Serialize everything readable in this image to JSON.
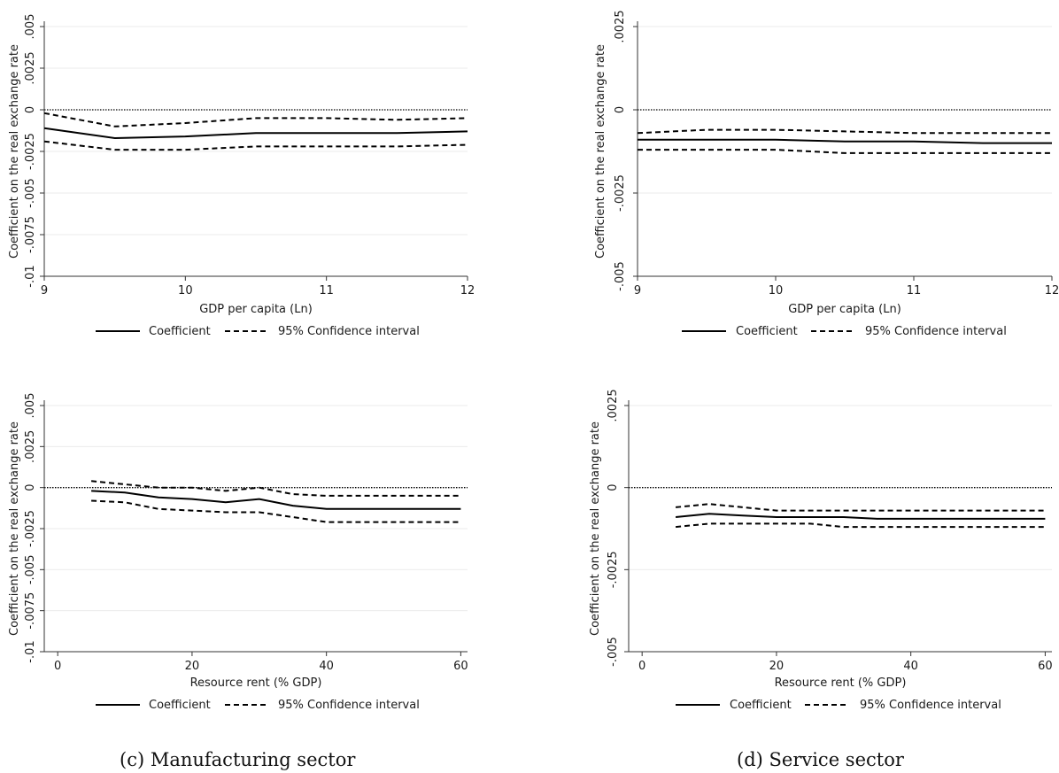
{
  "legend": {
    "coefficient": "Coefficient",
    "ci": "95% Confidence interval"
  },
  "captions": {
    "c": "(c) Manufacturing sector",
    "d": "(d) Service sector"
  },
  "colors": {
    "line": "#000000",
    "grid": "#ebebeb",
    "axis": "#333333"
  },
  "chart_data": [
    {
      "type": "line",
      "xlabel": "GDP per capita (Ln)",
      "ylabel": "Coefficient on the real exchange rate",
      "xlim": [
        9,
        12
      ],
      "ylim": [
        -0.01,
        0.005
      ],
      "xticks": [
        9,
        10,
        11,
        12
      ],
      "xtick_labels": [
        "9",
        "10",
        "11",
        "12"
      ],
      "yticks": [
        -0.01,
        -0.0075,
        -0.005,
        -0.0025,
        0,
        0.0025,
        0.005
      ],
      "ytick_labels": [
        "-.01",
        "-.0075",
        "-.005",
        "-.0025",
        "0",
        ".0025",
        ".005"
      ],
      "zero_line": true,
      "grid": true,
      "legend_position": "bottom",
      "x": [
        9,
        9.5,
        10,
        10.5,
        11,
        11.5,
        12
      ],
      "series": [
        {
          "name": "Coefficient",
          "style": "solid",
          "values": [
            -0.0011,
            -0.0017,
            -0.0016,
            -0.0014,
            -0.0014,
            -0.0014,
            -0.0013
          ]
        },
        {
          "name": "95% Confidence interval",
          "style": "dashed",
          "values": [
            -0.0002,
            -0.001,
            -0.0008,
            -0.0005,
            -0.0005,
            -0.0006,
            -0.0005
          ]
        },
        {
          "name": "95% Confidence interval",
          "style": "dashed",
          "values": [
            -0.0019,
            -0.0024,
            -0.0024,
            -0.0022,
            -0.0022,
            -0.0022,
            -0.0021
          ]
        }
      ]
    },
    {
      "type": "line",
      "xlabel": "GDP per capita (Ln)",
      "ylabel": "Coefficient on the real exchange rate",
      "xlim": [
        9,
        12
      ],
      "ylim": [
        -0.005,
        0.0025
      ],
      "xticks": [
        9,
        10,
        11,
        12
      ],
      "xtick_labels": [
        "9",
        "10",
        "11",
        "12"
      ],
      "yticks": [
        -0.005,
        -0.0025,
        0,
        0.0025
      ],
      "ytick_labels": [
        "-.005",
        "-.0025",
        "0",
        ".0025"
      ],
      "zero_line": true,
      "grid": true,
      "legend_position": "bottom",
      "x": [
        9,
        9.5,
        10,
        10.5,
        11,
        11.5,
        12
      ],
      "series": [
        {
          "name": "Coefficient",
          "style": "solid",
          "values": [
            -0.0009,
            -0.0009,
            -0.0009,
            -0.00095,
            -0.00095,
            -0.001,
            -0.001
          ]
        },
        {
          "name": "95% Confidence interval",
          "style": "dashed",
          "values": [
            -0.0007,
            -0.0006,
            -0.0006,
            -0.00065,
            -0.0007,
            -0.0007,
            -0.0007
          ]
        },
        {
          "name": "95% Confidence interval",
          "style": "dashed",
          "values": [
            -0.0012,
            -0.0012,
            -0.0012,
            -0.0013,
            -0.0013,
            -0.0013,
            -0.0013
          ]
        }
      ]
    },
    {
      "type": "line",
      "xlabel": "Resource rent (% GDP)",
      "ylabel": "Coefficient on the real exchange rate",
      "xlim": [
        -2,
        61
      ],
      "ylim": [
        -0.01,
        0.005
      ],
      "xticks": [
        0,
        20,
        40,
        60
      ],
      "xtick_labels": [
        "0",
        "20",
        "40",
        "60"
      ],
      "yticks": [
        -0.01,
        -0.0075,
        -0.005,
        -0.0025,
        0,
        0.0025,
        0.005
      ],
      "ytick_labels": [
        "-.01",
        "-.0075",
        "-.005",
        "-.0025",
        "0",
        ".0025",
        ".005"
      ],
      "zero_line": true,
      "grid": true,
      "legend_position": "bottom",
      "x": [
        5,
        10,
        15,
        20,
        25,
        30,
        35,
        40,
        45,
        50,
        55,
        60
      ],
      "series": [
        {
          "name": "Coefficient",
          "style": "solid",
          "values": [
            -0.0002,
            -0.0003,
            -0.0006,
            -0.0007,
            -0.0009,
            -0.0007,
            -0.0011,
            -0.0013,
            -0.0013,
            -0.0013,
            -0.0013,
            -0.0013
          ]
        },
        {
          "name": "95% Confidence interval",
          "style": "dashed",
          "values": [
            0.0004,
            0.0002,
            0.0,
            0.0,
            -0.0002,
            0.0,
            -0.0004,
            -0.0005,
            -0.0005,
            -0.0005,
            -0.0005,
            -0.0005
          ]
        },
        {
          "name": "95% Confidence interval",
          "style": "dashed",
          "values": [
            -0.0008,
            -0.0009,
            -0.0013,
            -0.0014,
            -0.0015,
            -0.0015,
            -0.0018,
            -0.0021,
            -0.0021,
            -0.0021,
            -0.0021,
            -0.0021
          ]
        }
      ]
    },
    {
      "type": "line",
      "xlabel": "Resource rent (% GDP)",
      "ylabel": "Coefficient on the real exchange rate",
      "xlim": [
        -2,
        61
      ],
      "ylim": [
        -0.005,
        0.0025
      ],
      "xticks": [
        0,
        20,
        40,
        60
      ],
      "xtick_labels": [
        "0",
        "20",
        "40",
        "60"
      ],
      "yticks": [
        -0.005,
        -0.0025,
        0,
        0.0025
      ],
      "ytick_labels": [
        "-.005",
        "-.0025",
        "0",
        ".0025"
      ],
      "zero_line": true,
      "grid": true,
      "legend_position": "bottom",
      "x": [
        5,
        10,
        15,
        20,
        25,
        30,
        35,
        40,
        45,
        50,
        55,
        60
      ],
      "series": [
        {
          "name": "Coefficient",
          "style": "solid",
          "values": [
            -0.0009,
            -0.0008,
            -0.00085,
            -0.0009,
            -0.0009,
            -0.0009,
            -0.00095,
            -0.00095,
            -0.00095,
            -0.00095,
            -0.00095,
            -0.00095
          ]
        },
        {
          "name": "95% Confidence interval",
          "style": "dashed",
          "values": [
            -0.0006,
            -0.0005,
            -0.0006,
            -0.0007,
            -0.0007,
            -0.0007,
            -0.0007,
            -0.0007,
            -0.0007,
            -0.0007,
            -0.0007,
            -0.0007
          ]
        },
        {
          "name": "95% Confidence interval",
          "style": "dashed",
          "values": [
            -0.0012,
            -0.0011,
            -0.0011,
            -0.0011,
            -0.0011,
            -0.0012,
            -0.0012,
            -0.0012,
            -0.0012,
            -0.0012,
            -0.0012,
            -0.0012
          ]
        }
      ]
    }
  ]
}
